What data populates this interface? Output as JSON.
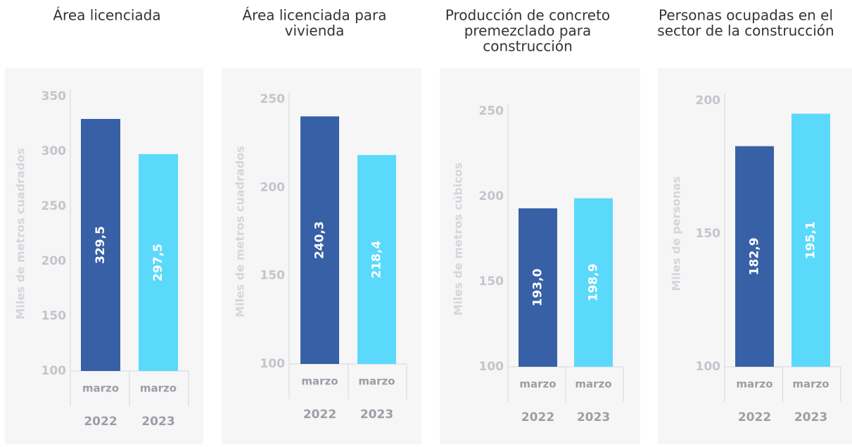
{
  "chart_data": [
    {
      "type": "bar",
      "title": [
        "Área licenciada"
      ],
      "ylabel": "Miles de metros cuadrados",
      "categories": [
        "marzo",
        "marzo"
      ],
      "years": [
        "2022",
        "2023"
      ],
      "values": [
        329.5,
        297.5
      ],
      "value_labels": [
        "329,5",
        "297,5"
      ],
      "colors": [
        "#3860a6",
        "#5bd9fb"
      ],
      "ylim": [
        100,
        350
      ],
      "yticks": [
        100,
        150,
        200,
        250,
        300,
        350
      ]
    },
    {
      "type": "bar",
      "title": [
        "Área licenciada para",
        "vivienda"
      ],
      "ylabel": "Miles de metros cuadrados",
      "categories": [
        "marzo",
        "marzo"
      ],
      "years": [
        "2022",
        "2023"
      ],
      "values": [
        240.3,
        218.4
      ],
      "value_labels": [
        "240,3",
        "218,4"
      ],
      "colors": [
        "#3860a6",
        "#5bd9fb"
      ],
      "ylim": [
        100,
        250
      ],
      "yticks": [
        100,
        150,
        200,
        250
      ]
    },
    {
      "type": "bar",
      "title": [
        "Producción de concreto",
        "premezclado para",
        "construcción"
      ],
      "ylabel": "Miles de metros cúbicos",
      "categories": [
        "marzo",
        "marzo"
      ],
      "years": [
        "2022",
        "2023"
      ],
      "values": [
        193.0,
        198.9
      ],
      "value_labels": [
        "193,0",
        "198,9"
      ],
      "colors": [
        "#3860a6",
        "#5bd9fb"
      ],
      "ylim": [
        100,
        250
      ],
      "yticks": [
        100,
        150,
        200,
        250
      ]
    },
    {
      "type": "bar",
      "title": [
        "Personas ocupadas en el",
        "sector de la construcción"
      ],
      "ylabel": "Miles de personas",
      "categories": [
        "marzo",
        "marzo"
      ],
      "years": [
        "2022",
        "2023"
      ],
      "values": [
        182.9,
        195.1
      ],
      "value_labels": [
        "182,9",
        "195,1"
      ],
      "colors": [
        "#3860a6",
        "#5bd9fb"
      ],
      "ylim": [
        100,
        200
      ],
      "yticks": [
        100,
        150,
        200
      ]
    }
  ]
}
